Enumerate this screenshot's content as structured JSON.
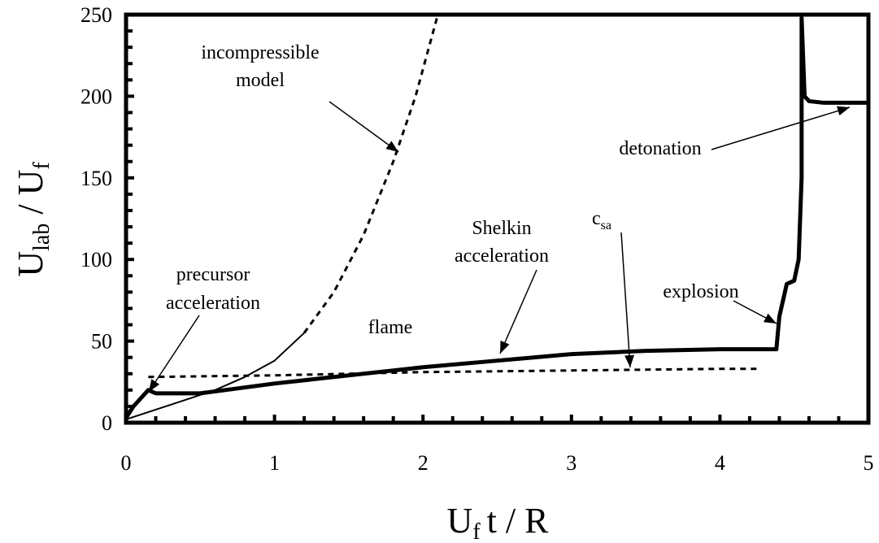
{
  "chart_data": {
    "type": "line",
    "xlabel": [
      "U",
      "f",
      "t / R"
    ],
    "ylabel": [
      "U",
      "lab",
      " / U",
      "f"
    ],
    "xlim": [
      0,
      5
    ],
    "xticks": [
      0,
      1,
      2,
      3,
      4,
      5
    ],
    "ylim": [
      0,
      250
    ],
    "yticks": [
      0,
      50,
      100,
      150,
      200,
      250
    ],
    "series": [
      {
        "color": "#000000",
        "width": 5,
        "dash": false,
        "x": [
          0,
          0.05,
          0.1,
          0.15,
          0.2,
          0.5,
          1,
          1.5,
          2,
          2.5,
          3,
          3.5,
          4,
          4.35,
          4.38,
          4.4,
          4.45,
          4.5,
          4.53,
          4.55,
          4.55,
          4.57,
          4.6,
          4.7,
          5
        ],
        "values": [
          3,
          10,
          15,
          20,
          18,
          18,
          24,
          29,
          34,
          38,
          42,
          44,
          45,
          45,
          45,
          65,
          85,
          87,
          100,
          150,
          248,
          200,
          197,
          196,
          196
        ]
      },
      {
        "color": "#000000",
        "width": 2,
        "dash": false,
        "x": [
          0,
          0.2,
          0.4,
          0.6,
          0.8,
          1,
          1.2
        ],
        "values": [
          2,
          8,
          14,
          20,
          28,
          38,
          55
        ]
      },
      {
        "color": "#000000",
        "width": 3,
        "dash": true,
        "x": [
          1.2,
          1.4,
          1.6,
          1.8,
          1.95,
          2.1
        ],
        "values": [
          55,
          80,
          115,
          160,
          200,
          250
        ]
      },
      {
        "color": "#000000",
        "width": 3,
        "dash": true,
        "x": [
          0.15,
          1,
          2,
          3,
          4,
          4.25
        ],
        "values": [
          28,
          29,
          31,
          32,
          33,
          33
        ]
      }
    ],
    "annotations": {
      "incompressible": [
        "incompressible",
        "model"
      ],
      "precursor": [
        "precursor",
        "acceleration"
      ],
      "flame": "flame",
      "shelkin": [
        "Shelkin",
        "acceleration"
      ],
      "csa": [
        "c",
        "sa"
      ],
      "explosion": "explosion",
      "detonation": "detonation"
    }
  }
}
